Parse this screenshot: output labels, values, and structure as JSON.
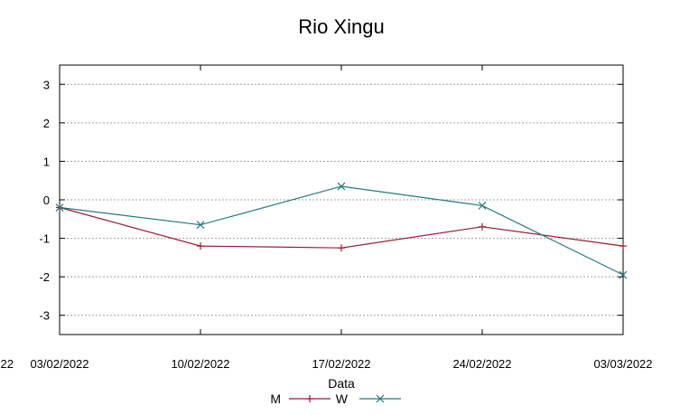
{
  "chart_data": {
    "type": "line",
    "title": "Rio Xingu",
    "xlabel": "Data",
    "ylabel": "",
    "x": [
      "03/02/2022",
      "10/02/2022",
      "17/02/2022",
      "24/02/2022",
      "03/03/2022"
    ],
    "x_partial_left_tick": "22",
    "ylim": [
      -3.5,
      3.5
    ],
    "yticks": [
      -3,
      -2,
      -1,
      0,
      1,
      2,
      3
    ],
    "grid": "horizontal dashed",
    "legend_position": "bottom",
    "series": [
      {
        "name": "M",
        "color": "#9b1b30",
        "marker": "plus",
        "values": [
          -0.2,
          -1.2,
          -1.25,
          -0.7,
          -1.2
        ]
      },
      {
        "name": "W",
        "color": "#1f7a80",
        "marker": "x",
        "values": [
          -0.2,
          -0.65,
          0.35,
          -0.15,
          -1.95
        ]
      }
    ]
  }
}
